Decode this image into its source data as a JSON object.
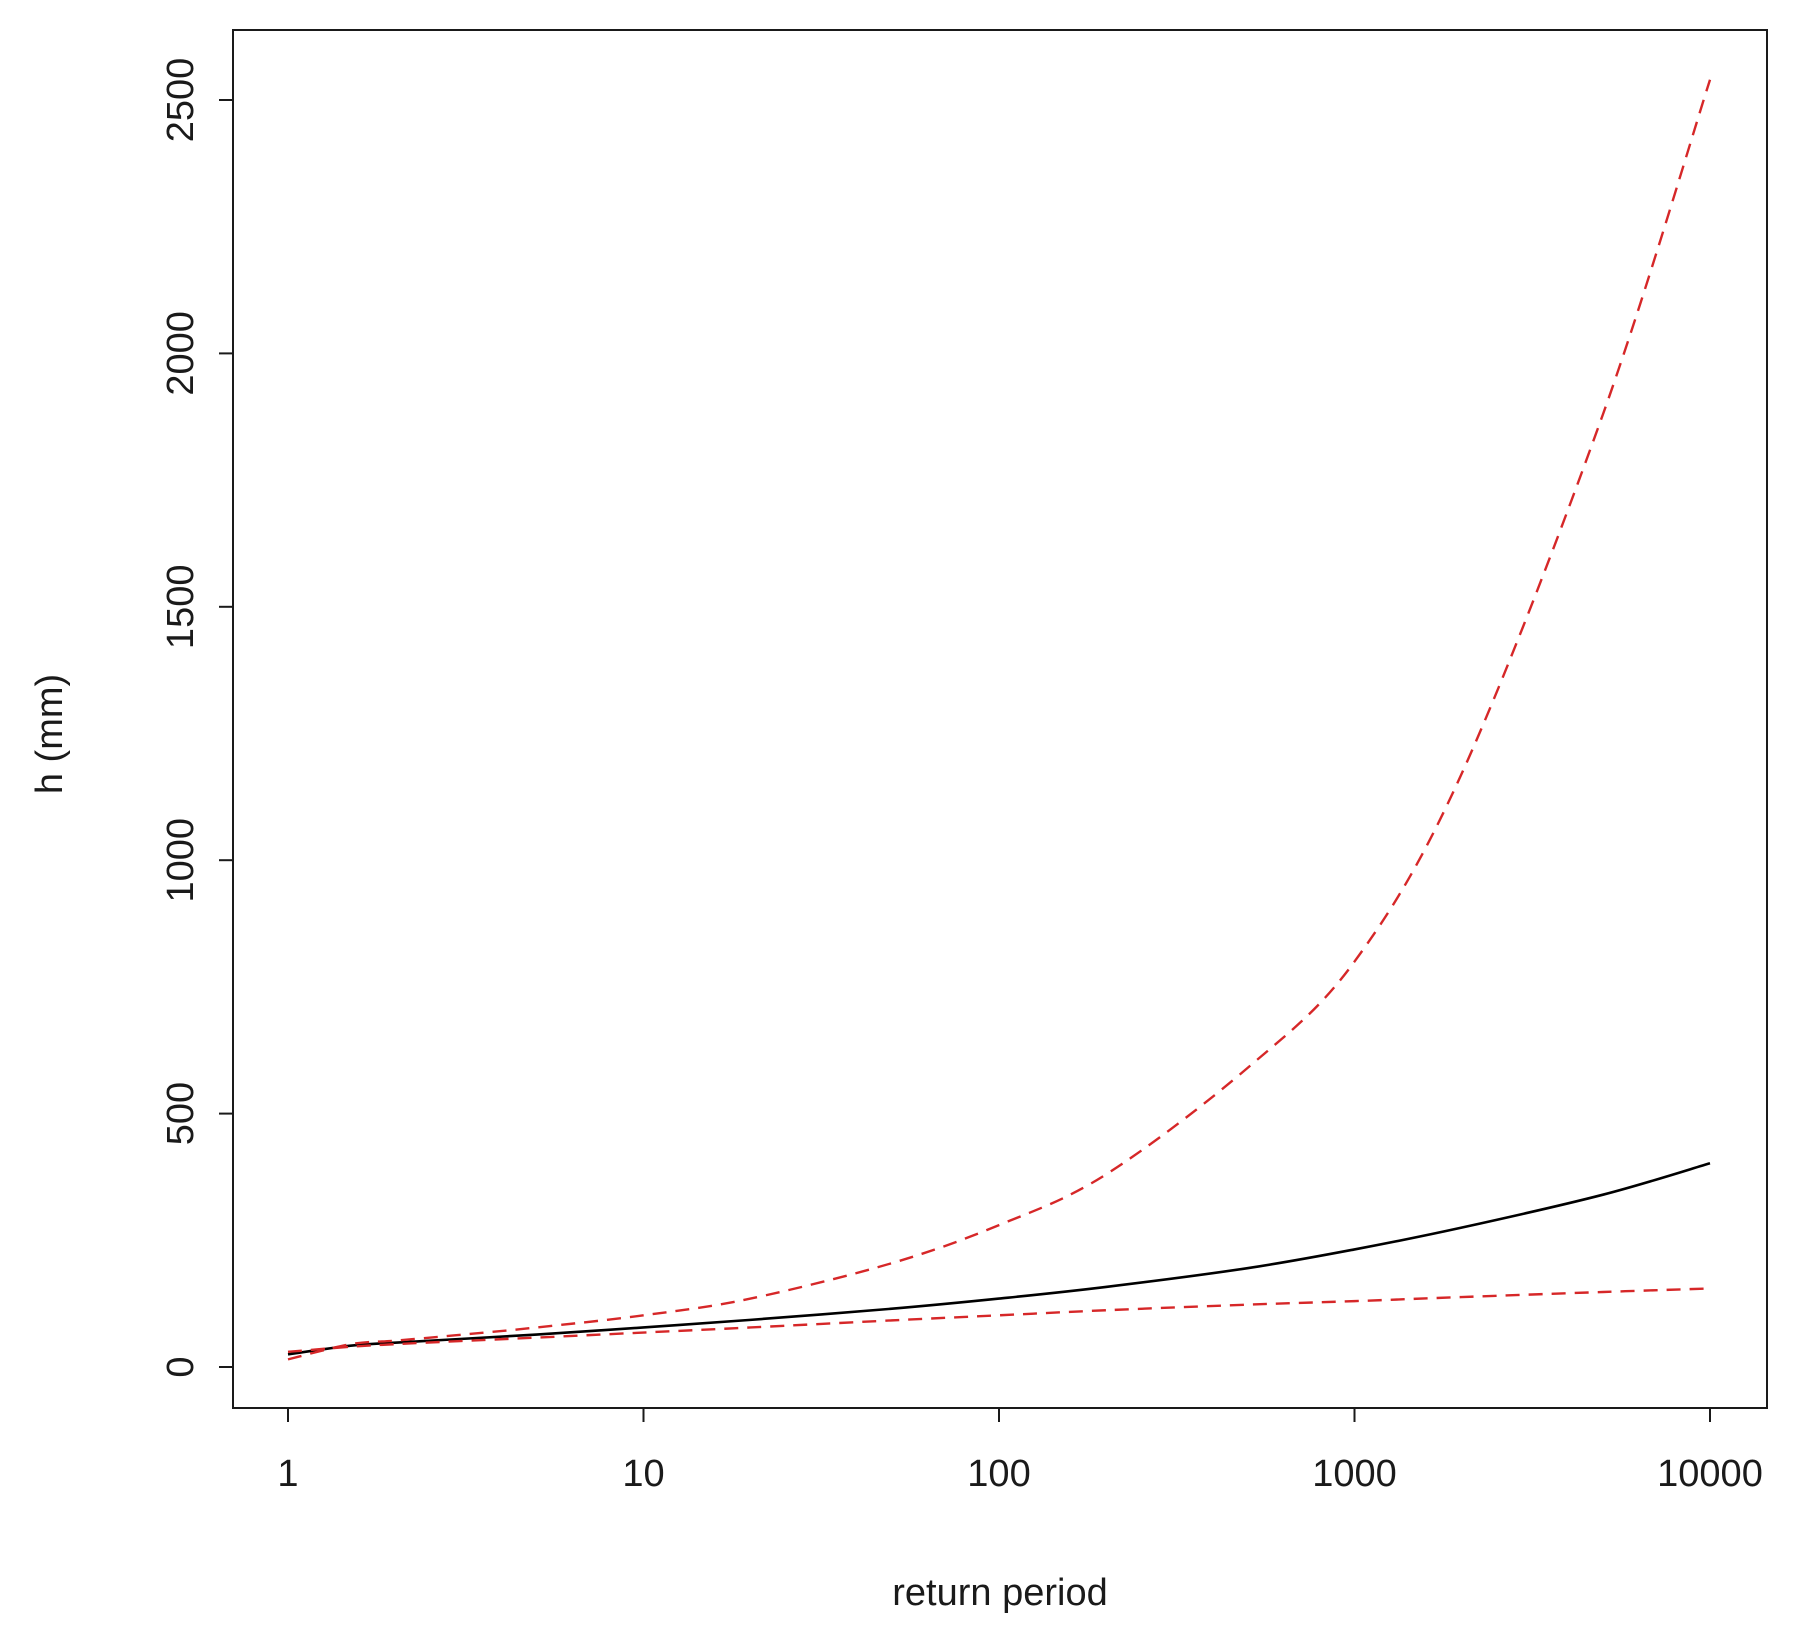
{
  "chart_data": {
    "type": "line",
    "title": "",
    "xlabel": "return period",
    "ylabel": "h (mm)",
    "x_scale": "log",
    "xlim": [
      1,
      10000
    ],
    "ylim": [
      -80,
      2650
    ],
    "x_ticks": [
      1,
      10,
      100,
      1000,
      10000
    ],
    "x_tick_labels": [
      "1",
      "10",
      "100",
      "1000",
      "10000"
    ],
    "y_ticks": [
      0,
      500,
      1000,
      1500,
      2000,
      2500
    ],
    "y_tick_labels": [
      "0",
      "500",
      "1000",
      "1500",
      "2000",
      "2500"
    ],
    "grid": false,
    "legend": "none",
    "x": [
      1,
      1.5,
      2,
      3,
      5,
      10,
      20,
      50,
      100,
      200,
      500,
      1000,
      2000,
      5000,
      10000
    ],
    "series": [
      {
        "style": "solid",
        "color": "#000000",
        "values": [
          25,
          42,
          48,
          55,
          64,
          78,
          93,
          115,
          135,
          158,
          195,
          232,
          275,
          340,
          402
        ]
      },
      {
        "style": "dashed",
        "color": "#d62728",
        "values": [
          15,
          45,
          52,
          63,
          78,
          102,
          135,
          205,
          280,
          380,
          590,
          800,
          1170,
          1880,
          2540
        ]
      },
      {
        "style": "dashed",
        "color": "#d62728",
        "values": [
          30,
          40,
          45,
          51,
          58,
          68,
          78,
          92,
          102,
          112,
          123,
          130,
          138,
          148,
          155
        ]
      }
    ]
  }
}
